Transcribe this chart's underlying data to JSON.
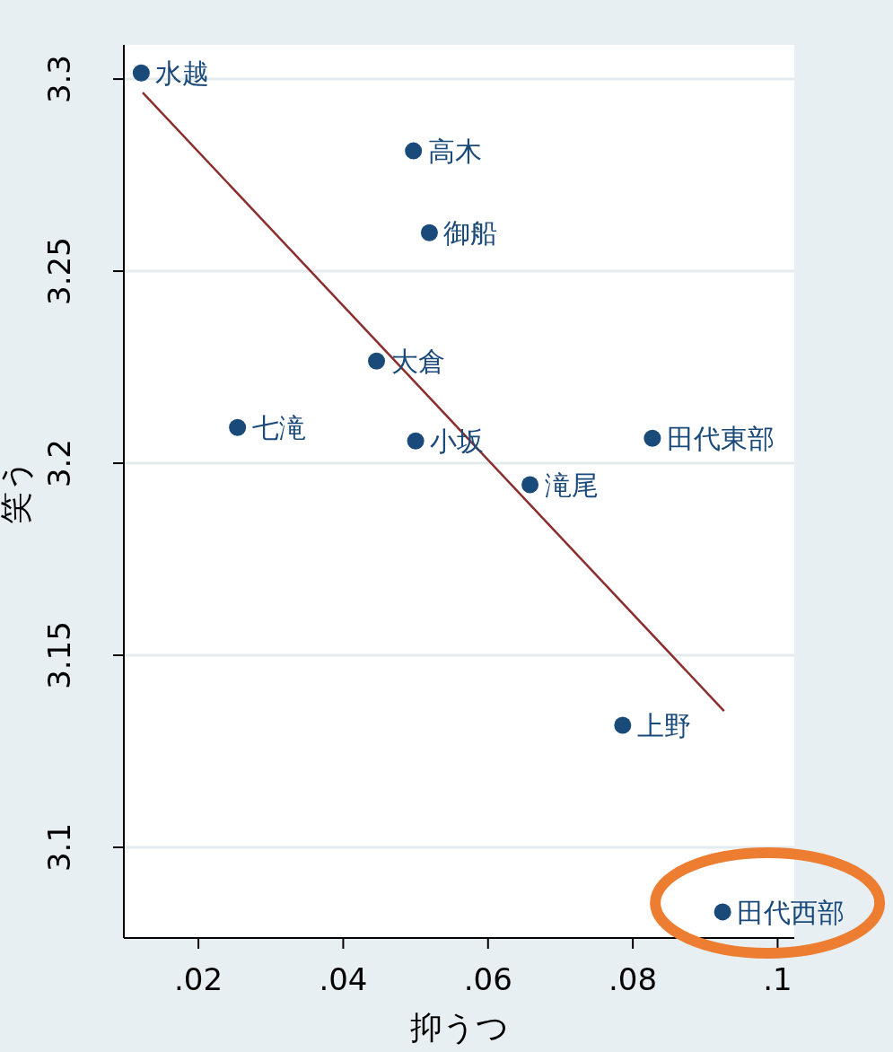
{
  "chart_data": {
    "type": "scatter",
    "xlabel": "抑うつ",
    "ylabel": "笑う",
    "xlim": [
      0.0097,
      0.1023
    ],
    "ylim": [
      3.0764,
      3.3089
    ],
    "xticks": [
      {
        "value": 0.02,
        "label": ".02"
      },
      {
        "value": 0.04,
        "label": ".04"
      },
      {
        "value": 0.06,
        "label": ".06"
      },
      {
        "value": 0.08,
        "label": ".08"
      },
      {
        "value": 0.1,
        "label": ".1"
      }
    ],
    "yticks": [
      3.1,
      3.15,
      3.2,
      3.25,
      3.3
    ],
    "grid": "y",
    "series": [
      {
        "type": "scatter",
        "marker": "circle",
        "color": "#1a4a7a",
        "x": [
          0.0121,
          0.0497,
          0.0519,
          0.0446,
          0.0254,
          0.05,
          0.0827,
          0.0658,
          0.0786,
          0.0924
        ],
        "values": [
          3.3016,
          3.2813,
          3.26,
          3.2266,
          3.2093,
          3.2058,
          3.2065,
          3.1944,
          3.1318,
          3.0832
        ]
      },
      {
        "type": "line",
        "color": "#8b2e2e",
        "line_style": "solid",
        "x": [
          0.0123,
          0.0926
        ],
        "values": [
          3.2965,
          3.1355
        ]
      }
    ],
    "annotations": [
      {
        "text": "水越",
        "x": 0.0121,
        "y": 3.3016
      },
      {
        "text": "高木",
        "x": 0.0497,
        "y": 3.2813
      },
      {
        "text": "御船",
        "x": 0.0519,
        "y": 3.26
      },
      {
        "text": "大倉",
        "x": 0.0446,
        "y": 3.2266
      },
      {
        "text": "七滝",
        "x": 0.0254,
        "y": 3.2093
      },
      {
        "text": "小坂",
        "x": 0.05,
        "y": 3.2058
      },
      {
        "text": "田代東部",
        "x": 0.0827,
        "y": 3.2065
      },
      {
        "text": "滝尾",
        "x": 0.0658,
        "y": 3.1944
      },
      {
        "text": "上野",
        "x": 0.0786,
        "y": 3.1318
      },
      {
        "text": "田代西部",
        "x": 0.0924,
        "y": 3.0832
      }
    ]
  }
}
